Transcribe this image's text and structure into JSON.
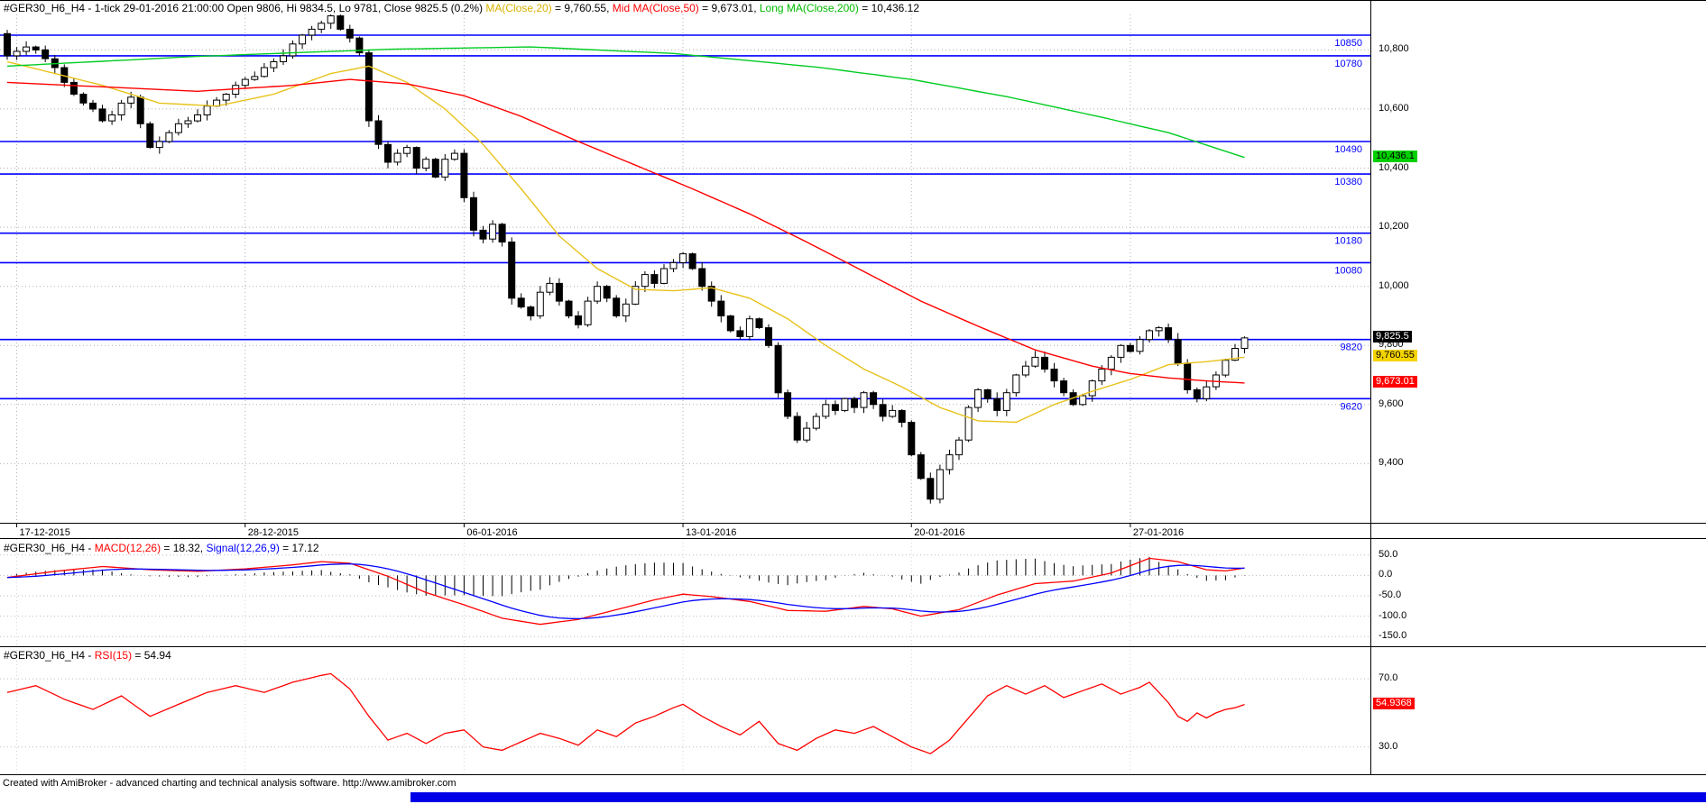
{
  "footer": {
    "text": "Created with AmiBroker - advanced charting and technical analysis software. http://www.amibroker.com"
  },
  "bottom_bar": {
    "color": "#0000e8"
  },
  "chart_data": {
    "type": "candlestick",
    "symbol": "#GER30_H6_H4",
    "status_line": "1-tick 29-01-2016 21:00:00 Open 9806, Hi 9834.5, Lo 9781, Close 9825.5 (0.2%)",
    "price_panel": {
      "title_segments": [
        {
          "text": "#GER30_H6_H4 - 1-tick 29-01-2016 21:00:00 Open 9806, Hi 9834.5, Lo 9781, Close 9825.5 (0.2%) ",
          "color": "#000000"
        },
        {
          "text": "MA(Close,20)",
          "color": "#d9b100"
        },
        {
          "text": " = 9,760.55, ",
          "color": "#000000"
        },
        {
          "text": "Mid MA(Close,50)",
          "color": "#ff0000"
        },
        {
          "text": " = 9,673.01, ",
          "color": "#000000"
        },
        {
          "text": "Long MA(Close,200)",
          "color": "#00bb00"
        },
        {
          "text": " = 10,436.12",
          "color": "#000000"
        }
      ],
      "ylim": [
        9200,
        10920
      ],
      "first_open": 10855,
      "closes": [
        10780,
        10795,
        10810,
        10800,
        10770,
        10740,
        10690,
        10650,
        10620,
        10600,
        10560,
        10580,
        10620,
        10640,
        10550,
        10470,
        10490,
        10520,
        10550,
        10560,
        10580,
        10610,
        10630,
        10650,
        10680,
        10700,
        10710,
        10740,
        10760,
        10780,
        10820,
        10850,
        10870,
        10890,
        10915,
        10870,
        10840,
        10790,
        10560,
        10480,
        10420,
        10450,
        10470,
        10400,
        10430,
        10370,
        10430,
        10450,
        10300,
        10190,
        10160,
        10210,
        10150,
        9960,
        9930,
        9900,
        9980,
        10010,
        9950,
        9900,
        9870,
        9950,
        10000,
        9960,
        9900,
        9940,
        10000,
        10040,
        10010,
        10060,
        10080,
        10110,
        10060,
        10000,
        9950,
        9900,
        9850,
        9830,
        9890,
        9860,
        9800,
        9640,
        9560,
        9480,
        9520,
        9560,
        9600,
        9580,
        9620,
        9590,
        9640,
        9600,
        9560,
        9580,
        9540,
        9430,
        9350,
        9280,
        9380,
        9430,
        9480,
        9590,
        9650,
        9620,
        9580,
        9640,
        9700,
        9730,
        9760,
        9720,
        9680,
        9640,
        9600,
        9630,
        9680,
        9720,
        9760,
        9800,
        9780,
        9820,
        9850,
        9860,
        9820,
        9740,
        9650,
        9620,
        9660,
        9700,
        9750,
        9790,
        9825.5
      ],
      "y_ticks": [
        {
          "value": 10800,
          "label": "10,800"
        },
        {
          "value": 10600,
          "label": "10,600"
        },
        {
          "value": 10400,
          "label": "10,400"
        },
        {
          "value": 10200,
          "label": "10,200"
        },
        {
          "value": 10000,
          "label": "10,000"
        },
        {
          "value": 9800,
          "label": "9,800"
        },
        {
          "value": 9600,
          "label": "9,600"
        },
        {
          "value": 9400,
          "label": "9,400"
        }
      ],
      "levels": [
        {
          "value": 10850,
          "label": "10850"
        },
        {
          "value": 10780,
          "label": "10780"
        },
        {
          "value": 10490,
          "label": "10490"
        },
        {
          "value": 10380,
          "label": "10380"
        },
        {
          "value": 10180,
          "label": "10180"
        },
        {
          "value": 10080,
          "label": "10080"
        },
        {
          "value": 9820,
          "label": "9820"
        },
        {
          "value": 9620,
          "label": "9620"
        }
      ],
      "x_dates": [
        {
          "index": 1,
          "label": "17-12-2015"
        },
        {
          "index": 25,
          "label": "28-12-2015"
        },
        {
          "index": 48,
          "label": "06-01-2016"
        },
        {
          "index": 71,
          "label": "13-01-2016"
        },
        {
          "index": 95,
          "label": "20-01-2016"
        },
        {
          "index": 118,
          "label": "27-01-2016"
        }
      ],
      "ma20": {
        "color": "#e8c21a",
        "points": [
          [
            0,
            10760
          ],
          [
            10,
            10680
          ],
          [
            16,
            10620
          ],
          [
            22,
            10610
          ],
          [
            28,
            10650
          ],
          [
            34,
            10720
          ],
          [
            38,
            10745
          ],
          [
            42,
            10690
          ],
          [
            46,
            10600
          ],
          [
            50,
            10480
          ],
          [
            54,
            10330
          ],
          [
            58,
            10170
          ],
          [
            62,
            10060
          ],
          [
            66,
            9990
          ],
          [
            70,
            9985
          ],
          [
            74,
            9995
          ],
          [
            78,
            9960
          ],
          [
            82,
            9890
          ],
          [
            86,
            9800
          ],
          [
            90,
            9720
          ],
          [
            94,
            9660
          ],
          [
            98,
            9590
          ],
          [
            102,
            9545
          ],
          [
            106,
            9540
          ],
          [
            110,
            9600
          ],
          [
            114,
            9645
          ],
          [
            118,
            9685
          ],
          [
            122,
            9735
          ],
          [
            126,
            9745
          ],
          [
            130,
            9760
          ]
        ]
      },
      "ma50": {
        "color": "#ff0000",
        "points": [
          [
            0,
            10690
          ],
          [
            10,
            10675
          ],
          [
            20,
            10660
          ],
          [
            30,
            10680
          ],
          [
            36,
            10700
          ],
          [
            42,
            10685
          ],
          [
            48,
            10645
          ],
          [
            54,
            10575
          ],
          [
            60,
            10490
          ],
          [
            66,
            10410
          ],
          [
            72,
            10330
          ],
          [
            78,
            10245
          ],
          [
            84,
            10150
          ],
          [
            90,
            10050
          ],
          [
            96,
            9950
          ],
          [
            102,
            9865
          ],
          [
            108,
            9785
          ],
          [
            114,
            9730
          ],
          [
            118,
            9705
          ],
          [
            122,
            9690
          ],
          [
            126,
            9680
          ],
          [
            130,
            9673
          ]
        ]
      },
      "ma200": {
        "color": "#00cc22",
        "points": [
          [
            0,
            10745
          ],
          [
            20,
            10778
          ],
          [
            40,
            10802
          ],
          [
            55,
            10810
          ],
          [
            70,
            10788
          ],
          [
            85,
            10742
          ],
          [
            95,
            10700
          ],
          [
            105,
            10642
          ],
          [
            115,
            10572
          ],
          [
            122,
            10520
          ],
          [
            130,
            10436
          ]
        ]
      },
      "price_boxes": [
        {
          "value": 9825.5,
          "label": "9,825.5",
          "bg": "#000000",
          "fg": "#ffffff"
        },
        {
          "value": 9760.55,
          "label": "9,760.55",
          "bg": "#f5d400",
          "fg": "#000000"
        },
        {
          "value": 9673.01,
          "label": "9,673.01",
          "bg": "#ff0000",
          "fg": "#ffffff"
        },
        {
          "value": 10436.1,
          "label": "10,436.1",
          "bg": "#00d000",
          "fg": "#000000"
        }
      ],
      "colors": {
        "level": "#0000ff",
        "grid": "#b0b0b0",
        "candle": "#000000"
      }
    },
    "macd_panel": {
      "title_segments": [
        {
          "text": "#GER30_H6_H4 - ",
          "color": "#000000"
        },
        {
          "text": "MACD(12,26)",
          "color": "#ff0000"
        },
        {
          "text": " = 18.32, ",
          "color": "#000000"
        },
        {
          "text": "Signal(12,26,9)",
          "color": "#0000ff"
        },
        {
          "text": " = 17.12",
          "color": "#000000"
        }
      ],
      "ylim": [
        -165,
        85
      ],
      "y_ticks": [
        {
          "value": 50,
          "label": "50.0"
        },
        {
          "value": 0,
          "label": "0.0"
        },
        {
          "value": -50,
          "label": "-50.0"
        },
        {
          "value": -100,
          "label": "-100.0"
        },
        {
          "value": -150,
          "label": "-150.0"
        }
      ],
      "macd_points": [
        [
          0,
          -5
        ],
        [
          5,
          10
        ],
        [
          10,
          22
        ],
        [
          15,
          14
        ],
        [
          20,
          10
        ],
        [
          25,
          16
        ],
        [
          30,
          26
        ],
        [
          33,
          34
        ],
        [
          36,
          30
        ],
        [
          40,
          -2
        ],
        [
          44,
          -42
        ],
        [
          48,
          -72
        ],
        [
          52,
          -105
        ],
        [
          56,
          -120
        ],
        [
          60,
          -108
        ],
        [
          64,
          -84
        ],
        [
          68,
          -60
        ],
        [
          71,
          -46
        ],
        [
          74,
          -52
        ],
        [
          78,
          -64
        ],
        [
          82,
          -86
        ],
        [
          86,
          -88
        ],
        [
          90,
          -76
        ],
        [
          93,
          -82
        ],
        [
          96,
          -100
        ],
        [
          100,
          -84
        ],
        [
          104,
          -48
        ],
        [
          108,
          -20
        ],
        [
          112,
          -14
        ],
        [
          116,
          6
        ],
        [
          120,
          42
        ],
        [
          123,
          34
        ],
        [
          126,
          14
        ],
        [
          128,
          11
        ],
        [
          130,
          18.32
        ]
      ],
      "signal_period": 9,
      "colors": {
        "macd": "#ff0000",
        "signal": "#0000ff",
        "histogram": "#000000"
      }
    },
    "rsi_panel": {
      "title_segments": [
        {
          "text": "#GER30_H6_H4 - ",
          "color": "#000000"
        },
        {
          "text": "RSI(15)",
          "color": "#ff0000"
        },
        {
          "text": " = 54.94",
          "color": "#000000"
        }
      ],
      "ylim": [
        15,
        87
      ],
      "y_ticks": [
        {
          "value": 70,
          "label": "70.0"
        },
        {
          "value": 30,
          "label": "30.0"
        }
      ],
      "points": [
        [
          0,
          62
        ],
        [
          3,
          66
        ],
        [
          6,
          58
        ],
        [
          9,
          52
        ],
        [
          12,
          60
        ],
        [
          15,
          48
        ],
        [
          18,
          55
        ],
        [
          21,
          62
        ],
        [
          24,
          66
        ],
        [
          27,
          62
        ],
        [
          30,
          68
        ],
        [
          33,
          72
        ],
        [
          34,
          73
        ],
        [
          36,
          64
        ],
        [
          38,
          48
        ],
        [
          40,
          34
        ],
        [
          42,
          38
        ],
        [
          44,
          32
        ],
        [
          46,
          38
        ],
        [
          48,
          40
        ],
        [
          50,
          30
        ],
        [
          52,
          28
        ],
        [
          54,
          33
        ],
        [
          56,
          38
        ],
        [
          58,
          35
        ],
        [
          60,
          31
        ],
        [
          62,
          40
        ],
        [
          64,
          36
        ],
        [
          66,
          44
        ],
        [
          68,
          48
        ],
        [
          70,
          53
        ],
        [
          71,
          55
        ],
        [
          73,
          48
        ],
        [
          75,
          42
        ],
        [
          77,
          37
        ],
        [
          79,
          45
        ],
        [
          81,
          32
        ],
        [
          83,
          28
        ],
        [
          85,
          35
        ],
        [
          87,
          40
        ],
        [
          89,
          38
        ],
        [
          91,
          42
        ],
        [
          93,
          36
        ],
        [
          95,
          30
        ],
        [
          97,
          26
        ],
        [
          99,
          34
        ],
        [
          101,
          47
        ],
        [
          103,
          60
        ],
        [
          105,
          66
        ],
        [
          107,
          61
        ],
        [
          109,
          66
        ],
        [
          111,
          59
        ],
        [
          113,
          63
        ],
        [
          115,
          67
        ],
        [
          117,
          61
        ],
        [
          119,
          65
        ],
        [
          120,
          68
        ],
        [
          121,
          62
        ],
        [
          122,
          56
        ],
        [
          123,
          48
        ],
        [
          124,
          45
        ],
        [
          125,
          50
        ],
        [
          126,
          47
        ],
        [
          127,
          50
        ],
        [
          128,
          52
        ],
        [
          129,
          53
        ],
        [
          130,
          54.94
        ]
      ],
      "box": {
        "value": 54.94,
        "label": "54.9368",
        "bg": "#ff0000",
        "fg": "#ffffff"
      },
      "colors": {
        "rsi": "#ff0000"
      }
    }
  }
}
